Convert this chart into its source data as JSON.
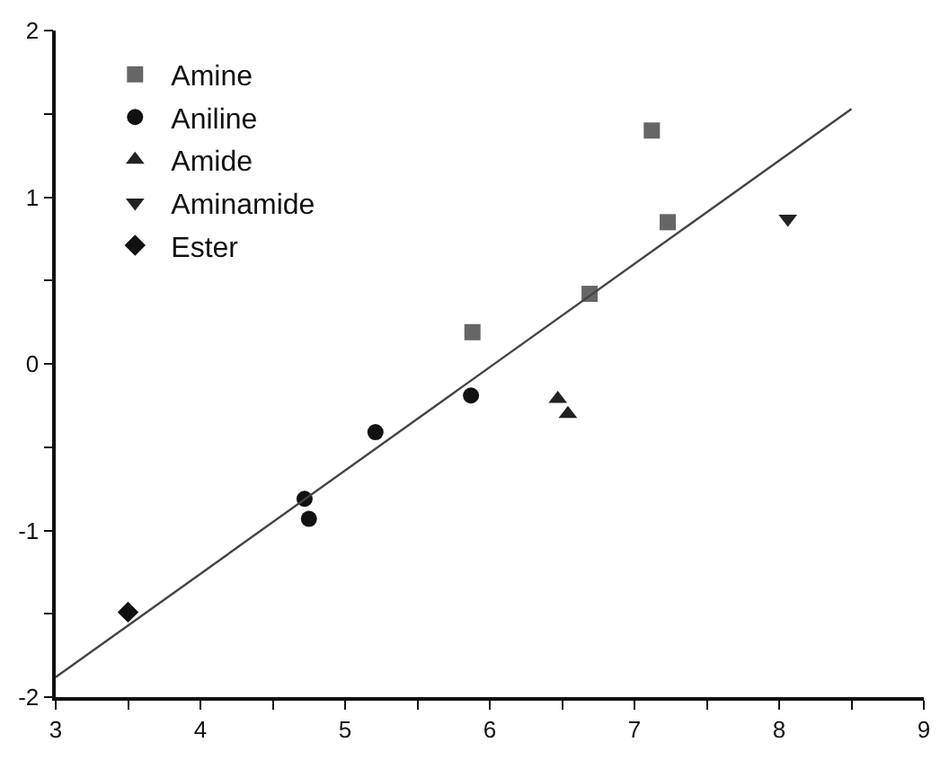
{
  "chart_data": {
    "type": "scatter",
    "legend": "top left",
    "xlim": [
      3,
      9
    ],
    "ylim": [
      -2,
      2
    ],
    "xticks": [
      3,
      {
        "value": 3.5,
        "label": null
      },
      4,
      {
        "value": 4.5,
        "label": null
      },
      5,
      {
        "value": 5.5,
        "label": null
      },
      6,
      {
        "value": 6.5,
        "label": null
      },
      7,
      {
        "value": 7.5,
        "label": null
      },
      8,
      {
        "value": 8.5,
        "label": null
      },
      9
    ],
    "yticks": [
      -2,
      {
        "value": -1.5,
        "label": null
      },
      -1,
      {
        "value": -0.5,
        "label": null
      },
      0,
      {
        "value": 0.5,
        "label": null
      },
      1,
      {
        "value": 1.5,
        "label": null
      },
      2
    ],
    "series": [
      {
        "name": "Amine",
        "color": "#666666",
        "marker": "square",
        "x": [
          5.88,
          6.69,
          7.12,
          7.23
        ],
        "values": [
          0.19,
          0.42,
          1.4,
          0.85
        ]
      },
      {
        "name": "Aniline",
        "color": "#111111",
        "marker": "circle",
        "x": [
          4.72,
          4.75,
          5.21,
          5.87
        ],
        "values": [
          -0.81,
          -0.93,
          -0.41,
          -0.19
        ]
      },
      {
        "name": "Amide",
        "color": "#222222",
        "marker": "triangle",
        "x": [
          6.47,
          6.54
        ],
        "values": [
          -0.21,
          -0.3
        ]
      },
      {
        "name": "Aminamide",
        "color": "#222222",
        "marker": "triangle-down",
        "x": [
          8.06
        ],
        "values": [
          0.87
        ]
      },
      {
        "name": "Ester",
        "color": "#111111",
        "marker": "diamond",
        "x": [
          3.5
        ],
        "values": [
          -1.49
        ]
      },
      {
        "type": "line",
        "color": "#444444",
        "marker": "none",
        "line_style": "solid",
        "x": [
          3,
          8.5
        ],
        "values": [
          -1.88,
          1.53
        ]
      }
    ]
  }
}
